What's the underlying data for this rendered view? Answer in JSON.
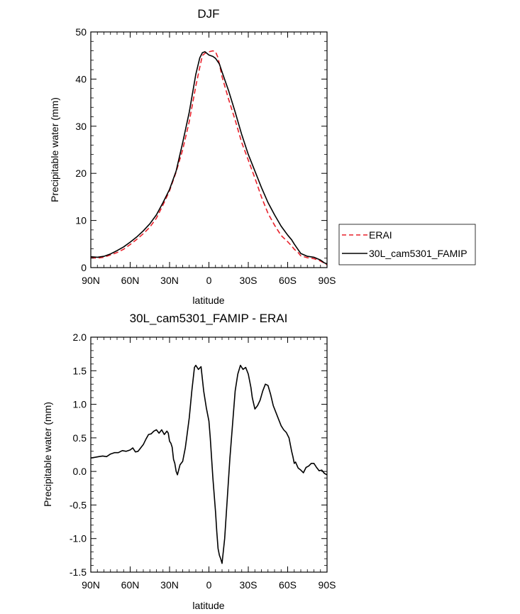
{
  "chart_data": [
    {
      "type": "line",
      "title": "DJF",
      "xlabel": "latitude",
      "ylabel": "Precipitable water (mm)",
      "xlim": [
        90,
        -90
      ],
      "ylim": [
        0,
        50
      ],
      "xticks": [
        90,
        60,
        30,
        0,
        -30,
        -60,
        -90
      ],
      "xtick_labels": [
        "90N",
        "60N",
        "30N",
        "0",
        "30S",
        "60S",
        "90S"
      ],
      "yticks": [
        0,
        10,
        20,
        30,
        40,
        50
      ],
      "ytick_labels": [
        "0",
        "10",
        "20",
        "30",
        "40",
        "50"
      ],
      "legend": [
        "ERAI",
        "30L_cam5301_FAMIP"
      ],
      "series": [
        {
          "name": "ERAI",
          "color": "#e8202a",
          "dash": "dashed",
          "x": [
            90,
            85,
            80,
            75,
            70,
            65,
            60,
            55,
            50,
            45,
            40,
            35,
            30,
            25,
            20,
            15,
            10,
            7,
            5,
            2,
            0,
            -3,
            -5,
            -7,
            -10,
            -15,
            -20,
            -25,
            -30,
            -35,
            -40,
            -45,
            -50,
            -55,
            -60,
            -63,
            -65,
            -68,
            -70,
            -75,
            -80,
            -85,
            -88,
            -90
          ],
          "y": [
            2.1,
            2.0,
            2.2,
            2.7,
            3.2,
            3.9,
            4.9,
            6.0,
            7.2,
            8.6,
            10.5,
            13.3,
            16.3,
            20.3,
            25.0,
            31.0,
            38.5,
            42.5,
            45.0,
            45.7,
            45.8,
            46.0,
            45.8,
            44.5,
            40.5,
            35.7,
            31.3,
            26.5,
            22.8,
            19.0,
            15.0,
            11.5,
            9.0,
            6.8,
            5.5,
            4.6,
            3.9,
            3.2,
            2.5,
            2.1,
            1.9,
            1.4,
            0.9,
            0.6
          ]
        },
        {
          "name": "30L_cam5301_FAMIP",
          "color": "#000000",
          "dash": "solid",
          "x": [
            90,
            85,
            80,
            75,
            70,
            65,
            60,
            55,
            50,
            45,
            40,
            35,
            30,
            25,
            20,
            15,
            10,
            7,
            5,
            3,
            0,
            -3,
            -5,
            -8,
            -10,
            -15,
            -20,
            -25,
            -30,
            -35,
            -40,
            -45,
            -50,
            -55,
            -60,
            -63,
            -65,
            -68,
            -70,
            -75,
            -80,
            -85,
            -88,
            -90
          ],
          "y": [
            2.3,
            2.2,
            2.4,
            2.9,
            3.6,
            4.4,
            5.4,
            6.5,
            7.8,
            9.3,
            11.2,
            13.8,
            16.6,
            20.5,
            26.5,
            33.0,
            41.0,
            44.5,
            45.6,
            45.8,
            45.1,
            44.8,
            44.4,
            43.2,
            41.5,
            37.5,
            33.0,
            28.2,
            24.0,
            20.5,
            17.0,
            13.8,
            11.2,
            8.8,
            6.9,
            5.9,
            5.0,
            3.8,
            3.0,
            2.4,
            2.2,
            1.6,
            1.0,
            0.8
          ]
        }
      ]
    },
    {
      "type": "line",
      "title": "30L_cam5301_FAMIP - ERAI",
      "xlabel": "latitude",
      "ylabel": "Precipitable water (mm)",
      "xlim": [
        90,
        -90
      ],
      "ylim": [
        -1.5,
        2.0
      ],
      "xticks": [
        90,
        60,
        30,
        0,
        -30,
        -60,
        -90
      ],
      "xtick_labels": [
        "90N",
        "60N",
        "30N",
        "0",
        "30S",
        "60S",
        "90S"
      ],
      "yticks": [
        -1.5,
        -1.0,
        -0.5,
        0.0,
        0.5,
        1.0,
        1.5,
        2.0
      ],
      "ytick_labels": [
        "-1.5",
        "-1.0",
        "-0.5",
        "0.0",
        "0.5",
        "1.0",
        "1.5",
        "2.0"
      ],
      "series": [
        {
          "name": "30L_cam5301_FAMIP - ERAI",
          "color": "#000000",
          "dash": "solid",
          "x": [
            90,
            87,
            84,
            81,
            78,
            75,
            72,
            69,
            66,
            63,
            60,
            58,
            56,
            54,
            52,
            50,
            48,
            46,
            44,
            42,
            40,
            38,
            36,
            34,
            32,
            31,
            30,
            29,
            28,
            27,
            26,
            25,
            24,
            22,
            20,
            18,
            17,
            15,
            14,
            13,
            11,
            10,
            8,
            6,
            4,
            2,
            0,
            -1,
            -3,
            -5,
            -6,
            -7,
            -8,
            -9,
            -10,
            -12,
            -14,
            -16,
            -18,
            -20,
            -22,
            -24,
            -26,
            -28,
            -30,
            -32,
            -33,
            -35,
            -37,
            -39,
            -41,
            -43,
            -45,
            -47,
            -49,
            -51,
            -53,
            -55,
            -57,
            -59,
            -61,
            -63,
            -64,
            -65,
            -66,
            -68,
            -70,
            -72,
            -74,
            -76,
            -78,
            -80,
            -82,
            -84,
            -86,
            -88,
            -90
          ],
          "y": [
            0.2,
            0.21,
            0.22,
            0.23,
            0.22,
            0.26,
            0.28,
            0.28,
            0.31,
            0.3,
            0.32,
            0.35,
            0.29,
            0.3,
            0.35,
            0.4,
            0.48,
            0.55,
            0.56,
            0.6,
            0.62,
            0.57,
            0.62,
            0.55,
            0.6,
            0.57,
            0.45,
            0.42,
            0.36,
            0.18,
            0.12,
            0.0,
            -0.05,
            0.1,
            0.15,
            0.35,
            0.5,
            0.8,
            1.0,
            1.2,
            1.55,
            1.58,
            1.52,
            1.56,
            1.2,
            0.95,
            0.75,
            0.5,
            -0.1,
            -0.6,
            -0.9,
            -1.15,
            -1.25,
            -1.3,
            -1.37,
            -1.0,
            -0.4,
            0.2,
            0.7,
            1.2,
            1.45,
            1.58,
            1.52,
            1.55,
            1.45,
            1.25,
            1.1,
            0.93,
            0.98,
            1.06,
            1.2,
            1.3,
            1.28,
            1.15,
            0.98,
            0.88,
            0.78,
            0.68,
            0.62,
            0.58,
            0.5,
            0.3,
            0.22,
            0.12,
            0.14,
            0.05,
            0.02,
            -0.02,
            0.06,
            0.08,
            0.12,
            0.12,
            0.06,
            0.01,
            0.02,
            -0.03,
            -0.05
          ]
        }
      ]
    }
  ]
}
